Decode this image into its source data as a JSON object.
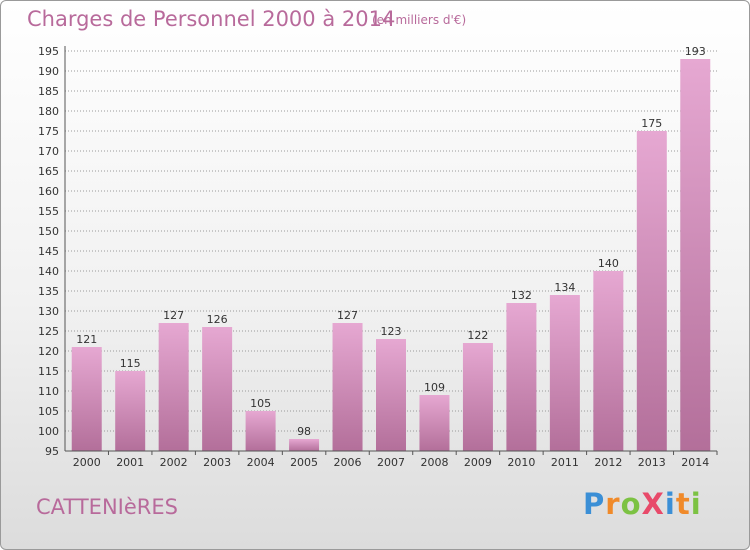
{
  "header": {
    "title": "Charges de Personnel 2000 à 2014",
    "subtitle": "(en milliers d'€)"
  },
  "footer": {
    "town": "CATTENIèRES",
    "brand_letters": [
      {
        "ch": "P",
        "color": "#3b8fd6"
      },
      {
        "ch": "r",
        "color": "#f08a2a"
      },
      {
        "ch": "o",
        "color": "#7cc243"
      },
      {
        "ch": "X",
        "color": "#e84a6a"
      },
      {
        "ch": "i",
        "color": "#3b8fd6"
      },
      {
        "ch": "t",
        "color": "#f08a2a"
      },
      {
        "ch": "i",
        "color": "#7cc243"
      }
    ]
  },
  "colors": {
    "bar_top": "#e6a8d2",
    "bar_bottom": "#b36f9a",
    "grid": "#9a9a9a",
    "axis": "#555555"
  },
  "chart_data": {
    "type": "bar",
    "title": "Charges de Personnel 2000 à 2014",
    "subtitle": "(en milliers d'€)",
    "categories": [
      "2000",
      "2001",
      "2002",
      "2003",
      "2004",
      "2005",
      "2006",
      "2007",
      "2008",
      "2009",
      "2010",
      "2011",
      "2012",
      "2013",
      "2014"
    ],
    "values": [
      121,
      115,
      127,
      126,
      105,
      98,
      127,
      123,
      109,
      122,
      132,
      134,
      140,
      175,
      193
    ],
    "ylim": [
      95,
      195
    ],
    "ytick_step": 5,
    "grid": true,
    "data_labels": true
  }
}
